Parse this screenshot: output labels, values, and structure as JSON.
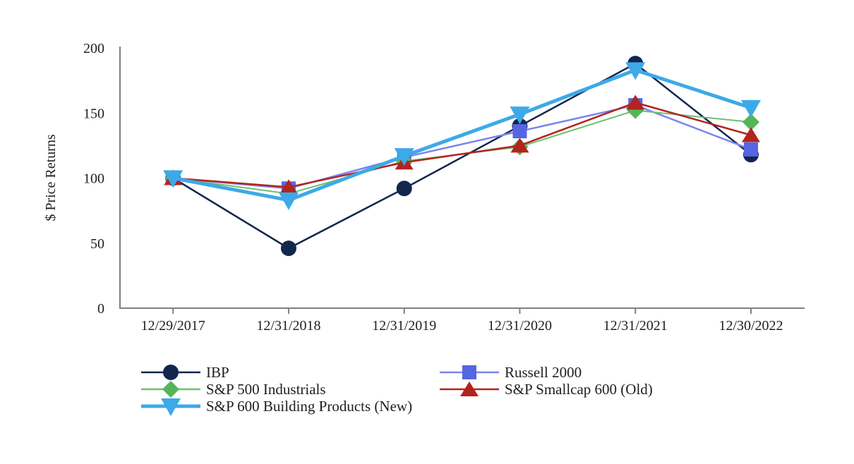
{
  "chart_data": {
    "type": "line",
    "title": "",
    "xlabel": "",
    "ylabel": "$ Price Returns",
    "ylim": [
      0,
      200
    ],
    "yticks": [
      0,
      50,
      100,
      150,
      200
    ],
    "grid": false,
    "legend_position": "bottom",
    "background_color": "#FFFFFF",
    "axis_color": "#808080",
    "text_color": "#1F1F1F",
    "categories": [
      "12/29/2017",
      "12/31/2018",
      "12/31/2019",
      "12/31/2020",
      "12/31/2021",
      "12/30/2022"
    ],
    "series": [
      {
        "name": "IBP",
        "values": [
          100,
          46,
          92,
          140,
          188,
          118
        ],
        "color": "#13264E",
        "line_color": "#13264E",
        "marker": "circle",
        "line_width": 2.5
      },
      {
        "name": "Russell 2000",
        "values": [
          100,
          92,
          116,
          136,
          156,
          122
        ],
        "color": "#5566E3",
        "line_color": "#7B84ED",
        "marker": "square",
        "line_width": 2.5
      },
      {
        "name": "S&P 500 Industrials",
        "values": [
          100,
          88,
          113,
          124,
          152,
          143
        ],
        "color": "#54B657",
        "line_color": "#6FBF70",
        "marker": "diamond",
        "line_width": 2
      },
      {
        "name": "S&P Smallcap 600 (Old)",
        "values": [
          100,
          93,
          112,
          125,
          158,
          133
        ],
        "color": "#B2241E",
        "line_color": "#B2241E",
        "marker": "triangle-up",
        "line_width": 2.5
      },
      {
        "name": "S&P 600 Building Products (New)",
        "values": [
          100,
          83,
          117,
          149,
          183,
          154
        ],
        "color": "#3DA9E8",
        "line_color": "#3DA9E8",
        "marker": "triangle-down",
        "line_width": 5
      }
    ]
  },
  "legend": {
    "columns": [
      [
        "IBP",
        "S&P 500 Industrials",
        "S&P 600 Building Products (New)"
      ],
      [
        "Russell 2000",
        "S&P Smallcap 600 (Old)"
      ]
    ]
  }
}
